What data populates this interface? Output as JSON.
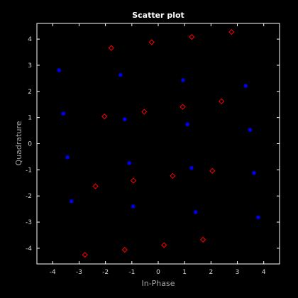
{
  "chart_data": {
    "type": "scatter",
    "title": "Scatter plot",
    "xlabel": "In-Phase",
    "ylabel": "Quadrature",
    "xlim": [
      -4.6,
      4.6
    ],
    "ylim": [
      -4.6,
      4.6
    ],
    "xticks": [
      -4,
      -3,
      -2,
      -1,
      0,
      1,
      2,
      3,
      4
    ],
    "yticks": [
      -4,
      -3,
      -2,
      -1,
      0,
      1,
      2,
      3,
      4
    ],
    "grid": false,
    "colors": {
      "background": "#000000",
      "axes": "#ffffff",
      "star_series": "#0000ff",
      "diamond_series": "#ff0000"
    },
    "series": [
      {
        "marker": "star",
        "color": "#0000ff",
        "points": [
          [
            -3.76,
            2.81
          ],
          [
            -1.43,
            2.63
          ],
          [
            0.94,
            2.43
          ],
          [
            3.32,
            2.21
          ],
          [
            -3.6,
            1.15
          ],
          [
            -1.27,
            0.93
          ],
          [
            1.11,
            0.74
          ],
          [
            3.48,
            0.53
          ],
          [
            -3.44,
            -0.52
          ],
          [
            -1.1,
            -0.74
          ],
          [
            1.26,
            -0.93
          ],
          [
            3.63,
            -1.12
          ],
          [
            -3.29,
            -2.2
          ],
          [
            -0.95,
            -2.4
          ],
          [
            1.42,
            -2.62
          ],
          [
            3.79,
            -2.82
          ]
        ]
      },
      {
        "marker": "diamond",
        "color": "#ff0000",
        "points": [
          [
            -1.78,
            3.66
          ],
          [
            -0.25,
            3.88
          ],
          [
            1.27,
            4.08
          ],
          [
            2.78,
            4.27
          ],
          [
            -2.04,
            1.04
          ],
          [
            -0.53,
            1.22
          ],
          [
            0.93,
            1.41
          ],
          [
            2.4,
            1.62
          ],
          [
            -2.38,
            -1.63
          ],
          [
            -0.94,
            -1.41
          ],
          [
            0.55,
            -1.23
          ],
          [
            2.05,
            -1.04
          ],
          [
            -2.78,
            -4.25
          ],
          [
            -1.27,
            -4.06
          ],
          [
            0.22,
            -3.88
          ],
          [
            1.7,
            -3.67
          ]
        ]
      }
    ]
  }
}
